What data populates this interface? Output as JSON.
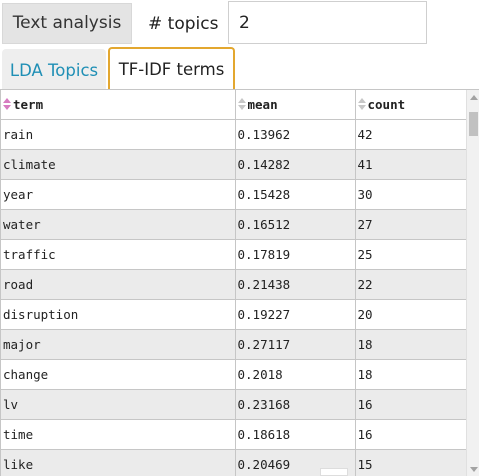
{
  "toolbar": {
    "analysis_button": "Text analysis",
    "topics_label": "# topics",
    "topics_value": "2"
  },
  "tabs": [
    {
      "label": "LDA Topics",
      "active": false
    },
    {
      "label": "TF-IDF terms",
      "active": true
    }
  ],
  "table": {
    "columns": [
      "term",
      "mean",
      "count"
    ],
    "sorted_column": "term",
    "rows": [
      {
        "term": "rain",
        "mean": "0.13962",
        "count": "42"
      },
      {
        "term": "climate",
        "mean": "0.14282",
        "count": "41"
      },
      {
        "term": "year",
        "mean": "0.15428",
        "count": "30"
      },
      {
        "term": "water",
        "mean": "0.16512",
        "count": "27"
      },
      {
        "term": "traffic",
        "mean": "0.17819",
        "count": "25"
      },
      {
        "term": "road",
        "mean": "0.21438",
        "count": "22"
      },
      {
        "term": "disruption",
        "mean": "0.19227",
        "count": "20"
      },
      {
        "term": "major",
        "mean": "0.27117",
        "count": "18"
      },
      {
        "term": "change",
        "mean": "0.2018",
        "count": "18"
      },
      {
        "term": "lv",
        "mean": "0.23168",
        "count": "16"
      },
      {
        "term": "time",
        "mean": "0.18618",
        "count": "16"
      },
      {
        "term": "like",
        "mean": "0.20469",
        "count": "15"
      }
    ]
  },
  "colors": {
    "tab_active_border": "#e3a72f",
    "tab_link": "#1f8fb5",
    "sort_active": "#d77bc1",
    "row_alt": "#ebebeb"
  },
  "icons": {
    "sort": "sort-arrows-icon",
    "scroll_up": "scroll-up-icon",
    "scroll_down": "scroll-down-icon"
  }
}
